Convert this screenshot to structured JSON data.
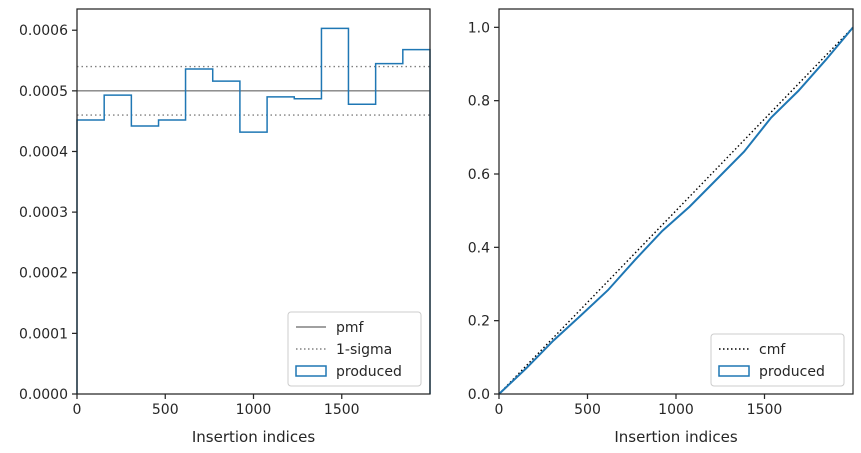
{
  "chart_data": [
    {
      "type": "histogram",
      "xlabel": "Insertion indices",
      "ylabel": "",
      "xlim": [
        0,
        2000
      ],
      "ylim": [
        0,
        0.000635
      ],
      "grid": false,
      "legend_placement": "lower-right",
      "x_ticks": [
        0,
        500,
        1000,
        1500
      ],
      "x_tick_labels": [
        "0",
        "500",
        "1000",
        "1500"
      ],
      "y_ticks": [
        0,
        0.0001,
        0.0002,
        0.0003,
        0.0004,
        0.0005,
        0.0006
      ],
      "y_tick_labels": [
        "0.0000",
        "0.0001",
        "0.0002",
        "0.0003",
        "0.0004",
        "0.0005",
        "0.0006"
      ],
      "lines": {
        "pmf": 0.0005,
        "sigma_upper": 0.00054,
        "sigma_lower": 0.00046
      },
      "bin_edges": [
        0,
        154,
        308,
        462,
        615,
        769,
        923,
        1077,
        1231,
        1385,
        1538,
        1692,
        1846,
        2000
      ],
      "series": [
        {
          "name": "produced",
          "values": [
            0.000452,
            0.000493,
            0.000442,
            0.000452,
            0.000536,
            0.000516,
            0.000432,
            0.00049,
            0.000487,
            0.000603,
            0.000478,
            0.000545,
            0.000568
          ]
        }
      ],
      "legend": [
        {
          "label": "pmf",
          "style": "solid",
          "color": "#808080"
        },
        {
          "label": "1-sigma",
          "style": "dotted",
          "color": "#808080"
        },
        {
          "label": "produced",
          "style": "patch",
          "color": "#1f77b4"
        }
      ],
      "colors": {
        "produced": "#1f77b4",
        "pmf": "#808080",
        "axes": "#262626"
      }
    },
    {
      "type": "line",
      "xlabel": "Insertion indices",
      "ylabel": "",
      "xlim": [
        0,
        2000
      ],
      "ylim": [
        0,
        1.05
      ],
      "grid": false,
      "legend_placement": "lower-right",
      "x_ticks": [
        0,
        500,
        1000,
        1500
      ],
      "x_tick_labels": [
        "0",
        "500",
        "1000",
        "1500"
      ],
      "y_ticks": [
        0,
        0.2,
        0.4,
        0.6,
        0.8,
        1.0
      ],
      "y_tick_labels": [
        "0.0",
        "0.2",
        "0.4",
        "0.6",
        "0.8",
        "1.0"
      ],
      "series": [
        {
          "name": "cmf",
          "style": "dotted",
          "x": [
            0,
            2000
          ],
          "y": [
            0,
            1.0
          ]
        },
        {
          "name": "produced",
          "style": "solid",
          "x": [
            0,
            154,
            308,
            462,
            615,
            769,
            923,
            1077,
            1231,
            1385,
            1538,
            1692,
            1846,
            2000
          ],
          "y": [
            0,
            0.07,
            0.146,
            0.214,
            0.283,
            0.366,
            0.445,
            0.511,
            0.586,
            0.661,
            0.754,
            0.827,
            0.911,
            1.0
          ]
        }
      ],
      "legend": [
        {
          "label": "cmf",
          "style": "dotted",
          "color": "#000000"
        },
        {
          "label": "produced",
          "style": "patch",
          "color": "#1f77b4"
        }
      ],
      "colors": {
        "produced": "#1f77b4",
        "cmf": "#000000",
        "axes": "#262626"
      }
    }
  ]
}
